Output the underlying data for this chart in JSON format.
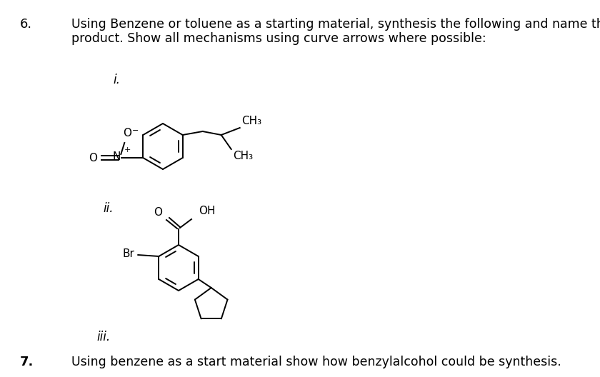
{
  "background_color": "#ffffff",
  "q6_number": "6.",
  "q6_text_line1": "Using Benzene or toluene as a starting material, synthesis the following and name the",
  "q6_text_line2": "product. Show all mechanisms using curve arrows where possible:",
  "label_i": "i.",
  "label_ii": "ii.",
  "label_iii": "iii.",
  "q7_number": "7.",
  "q7_text": "Using benzene as a start material show how benzylalcohol could be synthesis.",
  "font_size_main": 12.5,
  "font_size_number": 13,
  "font_size_label": 12
}
